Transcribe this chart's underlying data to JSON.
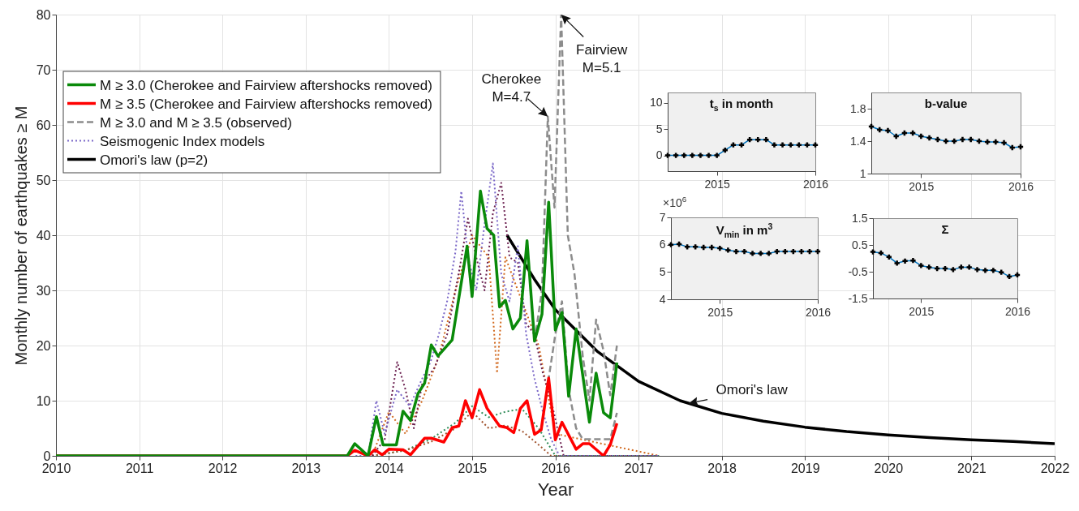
{
  "chart_data": [
    {
      "type": "line",
      "xlabel": "Year",
      "ylabel": "Monthly number of earthquakes ≥ M",
      "xlim": [
        2010,
        2022
      ],
      "ylim": [
        0,
        80
      ],
      "xticks": [
        2010,
        2011,
        2012,
        2013,
        2014,
        2015,
        2016,
        2017,
        2018,
        2019,
        2020,
        2021,
        2022
      ],
      "yticks": [
        0,
        10,
        20,
        30,
        40,
        50,
        60,
        70,
        80
      ],
      "grid": true,
      "legend": "top left",
      "annotations": [
        {
          "text": "Cherokee\nM=4.7",
          "x": 2015.91,
          "y": 61.5
        },
        {
          "text": "Fairview\nM=5.1",
          "x": 2016.07,
          "y": 80
        },
        {
          "text": "Omori's law",
          "x": 2017.6,
          "y": 9.5
        }
      ],
      "series": [
        {
          "name": "M ≥ 3.0 (Cherokee and Fairview aftershocks removed)",
          "color": "#0a8a0a",
          "line_style": "solid",
          "x": [
            2010,
            2013.5,
            2013.59,
            2013.75,
            2013.85,
            2013.93,
            2014.09,
            2014.17,
            2014.26,
            2014.35,
            2014.43,
            2014.51,
            2014.59,
            2014.76,
            2014.94,
            2015,
            2015.1,
            2015.18,
            2015.26,
            2015.33,
            2015.4,
            2015.49,
            2015.58,
            2015.66,
            2015.75,
            2015.84,
            2015.92,
            2016,
            2016.08,
            2016.16,
            2016.25,
            2016.41,
            2016.49,
            2016.58,
            2016.66,
            2016.74
          ],
          "values": [
            0,
            0,
            2.2,
            0,
            7.1,
            2,
            2,
            8.1,
            6.4,
            11.3,
            13.2,
            20.1,
            18.1,
            21,
            38,
            28.9,
            48,
            41.2,
            40,
            27,
            28.2,
            23,
            25,
            39,
            20.8,
            25.7,
            46,
            22.8,
            26,
            10.8,
            23,
            6.1,
            15,
            7.8,
            6.9,
            16.9
          ]
        },
        {
          "name": "M ≥ 3.5 (Cherokee and Fairview aftershocks removed)",
          "color": "#ff0000",
          "line_style": "solid",
          "x": [
            2010,
            2013.5,
            2013.59,
            2013.75,
            2013.83,
            2013.92,
            2014,
            2014.17,
            2014.26,
            2014.43,
            2014.51,
            2014.66,
            2014.76,
            2014.84,
            2014.92,
            2015,
            2015.09,
            2015.18,
            2015.33,
            2015.42,
            2015.5,
            2015.58,
            2015.66,
            2015.75,
            2015.83,
            2015.92,
            2016,
            2016.08,
            2016.25,
            2016.33,
            2016.41,
            2016.58,
            2016.66,
            2016.74
          ],
          "values": [
            0,
            0,
            1,
            0,
            1.1,
            0.2,
            1.2,
            1.1,
            0.2,
            3.2,
            3.2,
            2.5,
            5.1,
            5.4,
            10,
            6.9,
            12,
            8.6,
            5.4,
            5.1,
            4.2,
            8.6,
            10,
            3.9,
            4.7,
            14.1,
            2.9,
            6.1,
            1.2,
            2.2,
            2.2,
            0,
            2,
            5.9
          ]
        },
        {
          "name": "M ≥ 3.0 and M ≥ 3.5 (observed)",
          "color": "#8c8c8c",
          "line_style": "dashed",
          "x": [
            2015.75,
            2015.84,
            2015.91,
            2015.99,
            2016.07,
            2016.15,
            2016.23,
            2016.33,
            2016.41,
            2016.49,
            2016.58,
            2016.66,
            2016.74
          ],
          "values": [
            20.8,
            30,
            61.5,
            45,
            80,
            40,
            33,
            18,
            10,
            24.7,
            19,
            11,
            20
          ]
        },
        {
          "color": "#8c8c8c",
          "line_style": "dashed",
          "x": [
            2015.83,
            2015.92,
            2016,
            2016.08,
            2016.16,
            2016.25,
            2016.33,
            2016.41,
            2016.58,
            2016.66,
            2016.74
          ],
          "values": [
            4.7,
            14,
            22,
            28,
            12,
            5,
            3,
            3,
            3,
            3,
            7.8
          ]
        },
        {
          "name": "Seismogenic Index models",
          "color": "#7b68c8",
          "line_style": "dotted",
          "x": [
            2013.6,
            2013.75,
            2013.85,
            2013.95,
            2014.1,
            2014.25,
            2014.4,
            2014.5,
            2014.6,
            2014.7,
            2014.8,
            2014.87,
            2014.95,
            2015.05,
            2015.15,
            2015.25,
            2015.35,
            2015.45,
            2015.55,
            2015.65,
            2015.75,
            2015.85,
            2015.95,
            2016.05,
            2016.2,
            2017.25
          ],
          "values": [
            0,
            0,
            10,
            4,
            12,
            9,
            14,
            17,
            22,
            28,
            37,
            48,
            36,
            30,
            42,
            53,
            33,
            28,
            38,
            22,
            14,
            8,
            3,
            0,
            0,
            0
          ]
        },
        {
          "color": "#6b2050",
          "line_style": "dotted",
          "x": [
            2013.8,
            2013.95,
            2014.1,
            2014.2,
            2014.3,
            2014.4,
            2014.55,
            2014.7,
            2014.85,
            2014.95,
            2015.05,
            2015.15,
            2015.25,
            2015.35,
            2015.45,
            2015.55,
            2015.65,
            2015.75,
            2015.85,
            2015.95,
            2016.1,
            2017.25
          ],
          "values": [
            0,
            3,
            17,
            12,
            5,
            13,
            16,
            22,
            34,
            43,
            36,
            30,
            44,
            49.5,
            36,
            35,
            24,
            22,
            15,
            10,
            0,
            0
          ]
        },
        {
          "color": "#d2691e",
          "line_style": "dotted",
          "x": [
            2013.8,
            2014,
            2014.2,
            2014.4,
            2014.6,
            2014.8,
            2015,
            2015.2,
            2015.3,
            2015.4,
            2015.6,
            2015.8,
            2016,
            2017.25
          ],
          "values": [
            0,
            8,
            4,
            10,
            18,
            30,
            40,
            36,
            15,
            36,
            28,
            20,
            4,
            0
          ]
        },
        {
          "color": "#a0522d",
          "line_style": "dotted",
          "x": [
            2013.8,
            2014.2,
            2014.5,
            2014.8,
            2015,
            2015.2,
            2015.4,
            2015.6,
            2015.8,
            2015.95,
            2017.25
          ],
          "values": [
            0,
            1,
            2.5,
            5,
            8,
            5,
            5.5,
            4.5,
            2,
            0,
            0
          ]
        },
        {
          "color": "#2e8b57",
          "line_style": "dotted",
          "x": [
            2013.8,
            2014.2,
            2014.5,
            2014.8,
            2015,
            2015.2,
            2015.4,
            2015.6,
            2015.8,
            2016,
            2017.25
          ],
          "values": [
            0,
            1,
            3,
            6,
            9,
            7,
            8,
            8.5,
            5,
            0,
            0
          ]
        },
        {
          "name": "Omori's law (p=2)",
          "color": "#000000",
          "line_style": "solid",
          "x": [
            2015.42,
            2015.75,
            2016,
            2016.5,
            2017,
            2017.5,
            2018,
            2018.5,
            2019,
            2019.5,
            2020,
            2020.5,
            2021,
            2021.5,
            2022
          ],
          "values": [
            40,
            32,
            26.5,
            19,
            13.5,
            10,
            7.7,
            6.3,
            5.2,
            4.4,
            3.8,
            3.3,
            2.9,
            2.6,
            2.2
          ]
        }
      ]
    },
    {
      "type": "line",
      "title": "t$_{s}$ in month",
      "xlim": [
        2014.5,
        2016
      ],
      "xticks": [
        2015,
        2016
      ],
      "ylim": [
        -3,
        12
      ],
      "yticks": [
        0,
        5,
        10
      ],
      "marker": "cross",
      "x": [
        2014.5,
        2014.5833,
        2014.6667,
        2014.75,
        2014.8333,
        2014.9167,
        2015,
        2015.0833,
        2015.1667,
        2015.25,
        2015.3333,
        2015.4167,
        2015.5,
        2015.5833,
        2015.6667,
        2015.75,
        2015.8333,
        2015.9167,
        2016
      ],
      "series": [
        {
          "color": "#0072bd",
          "values": [
            0,
            0,
            0,
            0,
            0,
            0,
            0,
            1,
            2,
            2,
            3,
            3,
            3,
            2,
            2,
            2,
            2,
            2,
            2
          ]
        }
      ]
    },
    {
      "type": "line",
      "title": "b-value",
      "xlim": [
        2014.5,
        2016
      ],
      "xticks": [
        2015,
        2016
      ],
      "ylim": [
        1,
        2
      ],
      "yticks": [
        1,
        1.4,
        1.8
      ],
      "marker": "cross",
      "x": [
        2014.5,
        2014.5833,
        2014.6667,
        2014.75,
        2014.8333,
        2014.9167,
        2015,
        2015.0833,
        2015.1667,
        2015.25,
        2015.3333,
        2015.4167,
        2015.5,
        2015.5833,
        2015.6667,
        2015.75,
        2015.8333,
        2015.9167,
        2016
      ],
      "series": [
        {
          "color": "#0072bd",
          "values": [
            1.58,
            1.54,
            1.53,
            1.46,
            1.5,
            1.5,
            1.46,
            1.44,
            1.42,
            1.4,
            1.4,
            1.42,
            1.42,
            1.4,
            1.39,
            1.39,
            1.38,
            1.32,
            1.33
          ]
        }
      ]
    },
    {
      "type": "line",
      "title": "V$_{min}$ in m$^{3}$",
      "annotations": [
        "×10$^{6}$"
      ],
      "xlim": [
        2014.5,
        2016
      ],
      "xticks": [
        2015,
        2016
      ],
      "ylim": [
        4,
        7
      ],
      "yticks": [
        4,
        5,
        6,
        7
      ],
      "marker": "cross",
      "x": [
        2014.5,
        2014.5833,
        2014.6667,
        2014.75,
        2014.8333,
        2014.9167,
        2015,
        2015.0833,
        2015.1667,
        2015.25,
        2015.3333,
        2015.4167,
        2015.5,
        2015.5833,
        2015.6667,
        2015.75,
        2015.8333,
        2015.9167,
        2016
      ],
      "series": [
        {
          "color": "#0072bd",
          "values": [
            6.0,
            6.02,
            5.92,
            5.92,
            5.9,
            5.9,
            5.87,
            5.8,
            5.75,
            5.75,
            5.68,
            5.68,
            5.68,
            5.75,
            5.75,
            5.75,
            5.75,
            5.75,
            5.75
          ]
        }
      ]
    },
    {
      "type": "line",
      "title": "Σ",
      "xlim": [
        2014.5,
        2016
      ],
      "xticks": [
        2015,
        2016
      ],
      "ylim": [
        -1.5,
        1.5
      ],
      "yticks": [
        -1.5,
        -0.5,
        0.5,
        1.5
      ],
      "marker": "cross",
      "x": [
        2014.5,
        2014.5833,
        2014.6667,
        2014.75,
        2014.8333,
        2014.9167,
        2015,
        2015.0833,
        2015.1667,
        2015.25,
        2015.3333,
        2015.4167,
        2015.5,
        2015.5833,
        2015.6667,
        2015.75,
        2015.8333,
        2015.9167,
        2016
      ],
      "series": [
        {
          "color": "#0072bd",
          "values": [
            0.24,
            0.2,
            0.05,
            -0.18,
            -0.1,
            -0.08,
            -0.27,
            -0.33,
            -0.38,
            -0.38,
            -0.42,
            -0.33,
            -0.33,
            -0.42,
            -0.45,
            -0.45,
            -0.52,
            -0.68,
            -0.62
          ]
        }
      ]
    }
  ]
}
